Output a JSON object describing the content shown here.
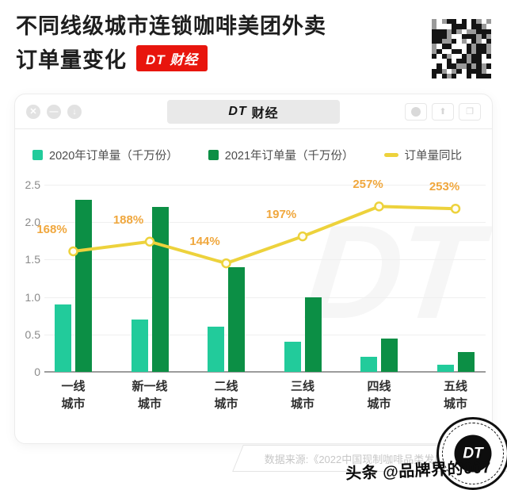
{
  "page": {
    "title_line1": "不同线级城市连锁咖啡美团外卖",
    "title_line2": "订单量变化",
    "title_badge": "DT 财经",
    "author_watermark": "头条 @品牌界的007",
    "source": "数据来源:《2022中国现制咖啡品类发展报告》",
    "stamp_label": "DT"
  },
  "browser": {
    "header_title_dt": "DT",
    "header_title_rest": "财经",
    "controls": [
      {
        "name": "close",
        "glyph": "✕"
      },
      {
        "name": "minimize",
        "glyph": "—"
      },
      {
        "name": "history",
        "glyph": "↓"
      }
    ]
  },
  "legend": [
    {
      "label": "2020年订单量（千万份）",
      "color": "#22cb9b",
      "type": "square"
    },
    {
      "label": "2021年订单量（千万份）",
      "color": "#0c8f45",
      "type": "square"
    },
    {
      "label": "订单量同比",
      "color": "#edd23c",
      "type": "dash"
    }
  ],
  "chart_data": {
    "type": "bar",
    "title": "不同线级城市连锁咖啡美团外卖订单量变化",
    "categories": [
      [
        "一线",
        "城市"
      ],
      [
        "新一线",
        "城市"
      ],
      [
        "二线",
        "城市"
      ],
      [
        "三线",
        "城市"
      ],
      [
        "四线",
        "城市"
      ],
      [
        "五线",
        "城市"
      ]
    ],
    "series": [
      {
        "name": "2020年订单量（千万份）",
        "values": [
          0.9,
          0.7,
          0.6,
          0.4,
          0.2,
          0.1
        ],
        "color": "#22cb9b"
      },
      {
        "name": "2021年订单量（千万份）",
        "values": [
          2.3,
          2.2,
          1.4,
          1.0,
          0.45,
          0.26
        ],
        "color": "#0c8f45"
      }
    ],
    "line_series": {
      "name": "订单量同比",
      "labels": [
        "168%",
        "188%",
        "144%",
        "197%",
        "257%",
        "253%"
      ],
      "values_pct": [
        168,
        188,
        144,
        197,
        257,
        253
      ],
      "plotted_left_axis": [
        1.61,
        1.74,
        1.45,
        1.81,
        2.21,
        2.18
      ],
      "color": "#edd23c",
      "marker_fill": "#fffdf2",
      "label_color": "#f0a73d"
    },
    "ylim": [
      0,
      2.5
    ],
    "y_ticks": [
      "2.5",
      "2.0",
      "1.5",
      "1.0",
      "0.5",
      "0"
    ],
    "grid": true,
    "legend_position": "top",
    "watermark": "DT"
  }
}
